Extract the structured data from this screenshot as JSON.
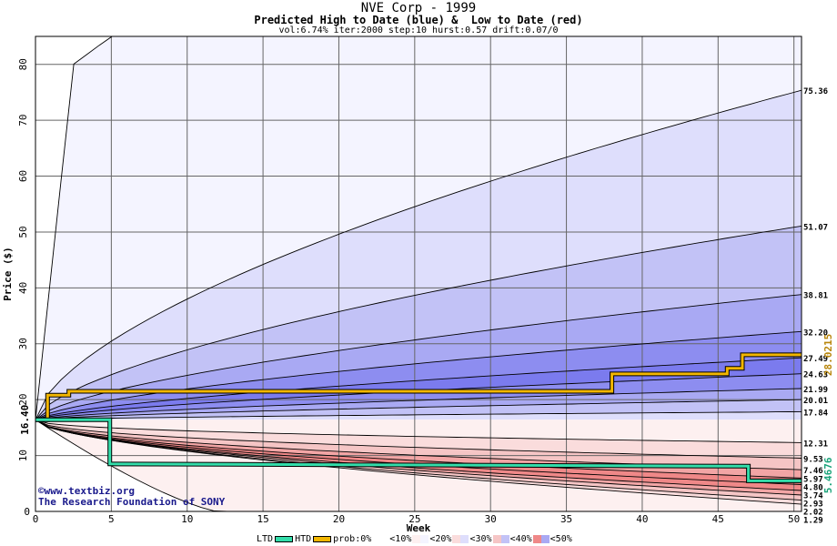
{
  "header": {
    "title": "NVE Corp - 1999",
    "subtitle": "Predicted High to Date (blue) &  Low to Date (red)",
    "params": "vol:6.74% iter:2000 step:10 hurst:0.57 drift:0.07/0"
  },
  "watermark": {
    "line1": "©www.textbiz.org",
    "line2": "The Research Foundation of SONY"
  },
  "legend": {
    "ltd": "LTD",
    "htd": "HTD",
    "prob": "prob:0%",
    "p10": "<10%",
    "p20": "<20%",
    "p30": "<30%",
    "p40": "<40%",
    "p50": "<50%"
  },
  "colors": {
    "ltd": "#33ddaa",
    "htd": "#f2b600",
    "blue": [
      "#f4f4ff",
      "#dedefc",
      "#c2c2f6",
      "#a9a9f3",
      "#8d8df0",
      "#7b7bee"
    ],
    "red": [
      "#fdf0f0",
      "#fadcdc",
      "#f5c5c5",
      "#f2a5a5",
      "#ef8888"
    ]
  },
  "chart_data": {
    "type": "area",
    "xlabel": "Week",
    "ylabel": "Price ($)",
    "xlim": [
      0,
      50.5
    ],
    "ylim": [
      0,
      85
    ],
    "xticks": [
      0,
      5,
      10,
      15,
      20,
      25,
      30,
      35,
      40,
      45,
      50
    ],
    "yticks": [
      0,
      10,
      20,
      30,
      40,
      50,
      60,
      70,
      80
    ],
    "start_price": 16.4,
    "start_label": "16.40",
    "upper_bands_end": [
      75.36,
      51.07,
      38.81,
      32.2,
      27.49,
      24.63,
      21.99,
      20.01,
      17.84
    ],
    "upper_labels": [
      "75.36",
      "51.07",
      "38.81",
      "32.20",
      "27.49",
      "24.63",
      "21.99",
      "20.01",
      "17.84"
    ],
    "lower_bands_end": [
      12.31,
      9.53,
      7.46,
      5.97,
      4.8,
      3.74,
      2.93,
      2.02,
      1.29
    ],
    "lower_labels": [
      "12.31",
      "9.53",
      "7.46",
      "5.97",
      "4.80",
      "3.74",
      "2.93",
      "2.02",
      "1.29"
    ],
    "outer_upper_max": 85,
    "htd_series": {
      "name": "HTD",
      "x": [
        0,
        0.8,
        0.8,
        2.2,
        2.2,
        38,
        38,
        45.6,
        45.6,
        46.6,
        46.6,
        50.5
      ],
      "y": [
        16.4,
        16.4,
        20.8,
        20.8,
        21.5,
        21.5,
        24.6,
        24.6,
        25.6,
        25.6,
        28.02,
        28.02
      ]
    },
    "ltd_series": {
      "name": "LTD",
      "x": [
        0,
        4.9,
        4.9,
        47,
        47,
        50.5
      ],
      "y": [
        16.4,
        16.4,
        8.5,
        8.1,
        5.47,
        5.47
      ]
    },
    "htd_end_label": "28.0215",
    "ltd_end_label": "5.4676",
    "grid": true
  }
}
